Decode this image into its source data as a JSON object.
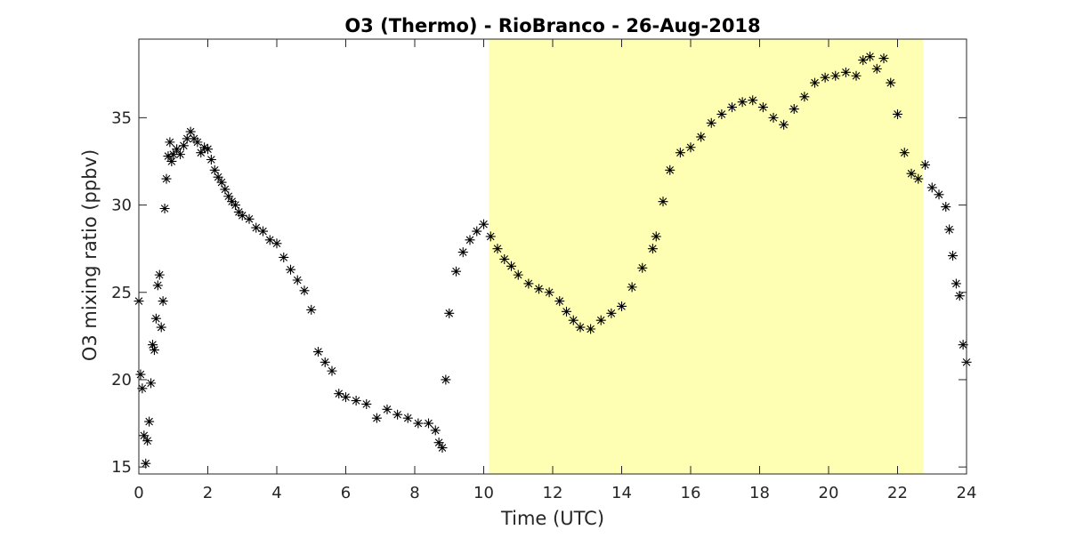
{
  "chart_data": {
    "type": "scatter",
    "title": "O3 (Thermo) - RioBranco - 26-Aug-2018",
    "xlabel": "Time (UTC)",
    "ylabel": "O3 mixing ratio (ppbv)",
    "xlim": [
      0,
      24
    ],
    "ylim": [
      14.6,
      39.5
    ],
    "xticks": [
      0,
      2,
      4,
      6,
      8,
      10,
      12,
      14,
      16,
      18,
      20,
      22,
      24
    ],
    "yticks": [
      15,
      20,
      25,
      30,
      35
    ],
    "grid": false,
    "marker": "asterisk",
    "marker_color": "#000000",
    "daylight_shading": {
      "x_start": 10.15,
      "x_end": 22.75,
      "color": "#ffffb3"
    },
    "series": [
      {
        "x": [
          0.0,
          0.05,
          0.1,
          0.15,
          0.2,
          0.25,
          0.3,
          0.35,
          0.4,
          0.45,
          0.5,
          0.55,
          0.6,
          0.65,
          0.7,
          0.75,
          0.8,
          0.85,
          0.9,
          0.95,
          1.0,
          1.1,
          1.2,
          1.3,
          1.4,
          1.5,
          1.6,
          1.7,
          1.8,
          1.9,
          2.0,
          2.1,
          2.2,
          2.3,
          2.4,
          2.5,
          2.6,
          2.7,
          2.8,
          2.9,
          3.0,
          3.2,
          3.4,
          3.6,
          3.8,
          4.0,
          4.2,
          4.4,
          4.6,
          4.8,
          5.0,
          5.2,
          5.4,
          5.6,
          5.8,
          6.0,
          6.3,
          6.6,
          6.9,
          7.2,
          7.5,
          7.8,
          8.1,
          8.4,
          8.6,
          8.7,
          8.8,
          8.9,
          9.0,
          9.2,
          9.4,
          9.6,
          9.8,
          10.0,
          10.2,
          10.4,
          10.6,
          10.8,
          11.0,
          11.3,
          11.6,
          11.9,
          12.2,
          12.4,
          12.6,
          12.8,
          13.1,
          13.4,
          13.7,
          14.0,
          14.3,
          14.6,
          14.9,
          15.0,
          15.2,
          15.4,
          15.7,
          16.0,
          16.3,
          16.6,
          16.9,
          17.2,
          17.5,
          17.8,
          18.1,
          18.4,
          18.7,
          19.0,
          19.3,
          19.6,
          19.9,
          20.2,
          20.5,
          20.8,
          21.0,
          21.2,
          21.4,
          21.6,
          21.8,
          22.0,
          22.2,
          22.4,
          22.6,
          22.8,
          23.0,
          23.2,
          23.4,
          23.5,
          23.6,
          23.7,
          23.8,
          23.9,
          24.0
        ],
        "y": [
          24.5,
          20.3,
          19.5,
          16.8,
          15.2,
          16.5,
          17.6,
          19.8,
          22.0,
          21.7,
          23.5,
          25.4,
          26.0,
          23.0,
          24.5,
          29.8,
          31.5,
          32.8,
          33.6,
          32.5,
          32.9,
          33.2,
          32.9,
          33.4,
          33.8,
          34.2,
          33.8,
          33.6,
          33.0,
          33.3,
          33.2,
          32.6,
          32.0,
          31.6,
          31.3,
          30.9,
          30.5,
          30.2,
          30.0,
          29.6,
          29.4,
          29.2,
          28.7,
          28.5,
          28.0,
          27.8,
          27.0,
          26.3,
          25.7,
          25.1,
          24.0,
          21.6,
          21.0,
          20.5,
          19.2,
          19.0,
          18.8,
          18.6,
          17.8,
          18.3,
          18.0,
          17.8,
          17.5,
          17.5,
          17.1,
          16.4,
          16.1,
          20.0,
          23.8,
          26.2,
          27.3,
          28.0,
          28.5,
          28.9,
          28.2,
          27.5,
          26.9,
          26.5,
          26.0,
          25.5,
          25.2,
          25.0,
          24.5,
          23.9,
          23.4,
          23.0,
          22.9,
          23.4,
          23.8,
          24.2,
          25.3,
          26.4,
          27.5,
          28.2,
          30.2,
          32.0,
          33.0,
          33.3,
          33.9,
          34.7,
          35.2,
          35.6,
          35.9,
          36.0,
          35.6,
          35.0,
          34.6,
          35.5,
          36.2,
          37.0,
          37.3,
          37.4,
          37.6,
          37.4,
          38.3,
          38.5,
          37.8,
          38.4,
          37.0,
          35.2,
          33.0,
          31.8,
          31.5,
          32.3,
          31.0,
          30.6,
          29.9,
          28.6,
          27.1,
          25.5,
          24.8,
          22.0,
          21.0
        ]
      }
    ]
  }
}
